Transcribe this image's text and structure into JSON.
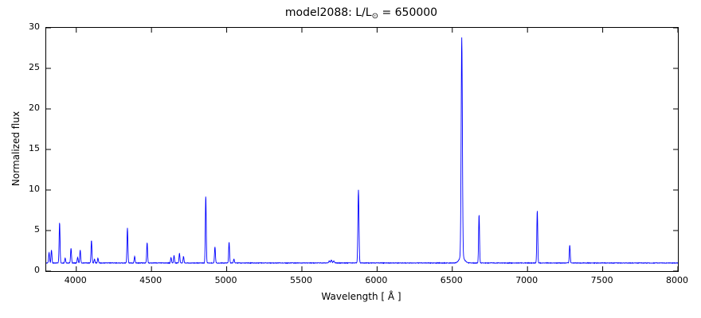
{
  "figure": {
    "title_prefix": "model2088: L/L",
    "title_sub": "⊙",
    "title_suffix": " = 650000"
  },
  "chart_data": {
    "type": "line",
    "title": "model2088: L/L⊙ = 650000",
    "xlabel": "Wavelength [ Å ]",
    "ylabel": "Normalized flux",
    "xlim": [
      3800,
      8000
    ],
    "ylim": [
      0,
      30
    ],
    "xticks": [
      4000,
      4500,
      5000,
      5500,
      6000,
      6500,
      7000,
      7500,
      8000
    ],
    "yticks": [
      0,
      5,
      10,
      15,
      20,
      25,
      30
    ],
    "grid": false,
    "legend": false,
    "line_color": "#0000ff",
    "axis_color": "#000000",
    "continuum_level": 1.0,
    "noise_amplitude": 0.07,
    "emission_lines": [
      {
        "wavelength": 3819,
        "peak_above_continuum": 1.3,
        "sigma": 3
      },
      {
        "wavelength": 3835,
        "peak_above_continuum": 1.6,
        "sigma": 3
      },
      {
        "wavelength": 3889,
        "peak_above_continuum": 5.0,
        "sigma": 3
      },
      {
        "wavelength": 3926,
        "peak_above_continuum": 0.6,
        "sigma": 3
      },
      {
        "wavelength": 3965,
        "peak_above_continuum": 1.8,
        "sigma": 3
      },
      {
        "wavelength": 4009,
        "peak_above_continuum": 0.7,
        "sigma": 3
      },
      {
        "wavelength": 4026,
        "peak_above_continuum": 1.6,
        "sigma": 3
      },
      {
        "wavelength": 4101,
        "peak_above_continuum": 2.8,
        "sigma": 3
      },
      {
        "wavelength": 4121,
        "peak_above_continuum": 0.5,
        "sigma": 3
      },
      {
        "wavelength": 4144,
        "peak_above_continuum": 0.6,
        "sigma": 3
      },
      {
        "wavelength": 4340,
        "peak_above_continuum": 4.3,
        "sigma": 3
      },
      {
        "wavelength": 4388,
        "peak_above_continuum": 0.8,
        "sigma": 3
      },
      {
        "wavelength": 4471,
        "peak_above_continuum": 2.5,
        "sigma": 3
      },
      {
        "wavelength": 4630,
        "peak_above_continuum": 0.7,
        "sigma": 3
      },
      {
        "wavelength": 4650,
        "peak_above_continuum": 0.9,
        "sigma": 3
      },
      {
        "wavelength": 4686,
        "peak_above_continuum": 1.2,
        "sigma": 3
      },
      {
        "wavelength": 4713,
        "peak_above_continuum": 0.8,
        "sigma": 3
      },
      {
        "wavelength": 4861,
        "peak_above_continuum": 8.3,
        "sigma": 3
      },
      {
        "wavelength": 4922,
        "peak_above_continuum": 2.0,
        "sigma": 3
      },
      {
        "wavelength": 5016,
        "peak_above_continuum": 2.6,
        "sigma": 3
      },
      {
        "wavelength": 5048,
        "peak_above_continuum": 0.5,
        "sigma": 3
      },
      {
        "wavelength": 5682,
        "peak_above_continuum": 0.25,
        "sigma": 4
      },
      {
        "wavelength": 5696,
        "peak_above_continuum": 0.35,
        "sigma": 4
      },
      {
        "wavelength": 5712,
        "peak_above_continuum": 0.25,
        "sigma": 4
      },
      {
        "wavelength": 5876,
        "peak_above_continuum": 9.0,
        "sigma": 3.5
      },
      {
        "wavelength": 6563,
        "peak_above_continuum": 27.0,
        "sigma": 4
      },
      {
        "wavelength": 6563,
        "peak_above_continuum": 0.8,
        "sigma": 16
      },
      {
        "wavelength": 6678,
        "peak_above_continuum": 6.0,
        "sigma": 3
      },
      {
        "wavelength": 7065,
        "peak_above_continuum": 6.5,
        "sigma": 3
      },
      {
        "wavelength": 7281,
        "peak_above_continuum": 2.2,
        "sigma": 3
      }
    ]
  }
}
